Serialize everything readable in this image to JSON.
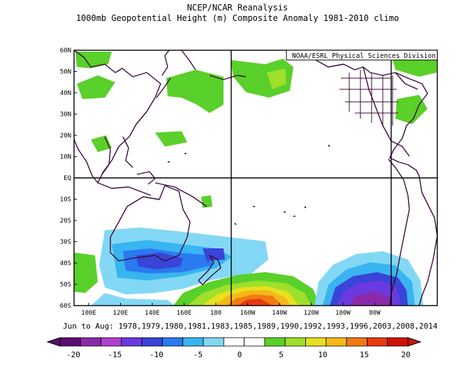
{
  "header": {
    "title": "NCEP/NCAR Reanalysis",
    "subtitle": "1000mb Geopotential Height (m) Composite Anomaly 1981-2010 climo"
  },
  "credit": "NOAA/ESRL Physical Sciences Division",
  "lat_labels": [
    "60N",
    "50N",
    "40N",
    "30N",
    "20N",
    "10N",
    "EQ",
    "10S",
    "20S",
    "30S",
    "40S",
    "50S",
    "60S"
  ],
  "lon_labels": [
    "100E",
    "120E",
    "140E",
    "160E",
    "180",
    "160W",
    "140W",
    "120W",
    "100W",
    "80W"
  ],
  "footer": "Jun to Aug: 1978,1979,1980,1981,1983,1985,1989,1990,1992,1993,1996,2003,2008,2014",
  "colorbar": {
    "labels": [
      "-20",
      "-15",
      "-10",
      "-5",
      "0",
      "5",
      "10",
      "15",
      "20"
    ],
    "colors": [
      "#5a0f6e",
      "#8a2aa8",
      "#b040d0",
      "#6a3ae0",
      "#3a44d8",
      "#2a7af0",
      "#38b4f0",
      "#82d8f4",
      "#ffffff",
      "#ffffff",
      "#5ad02a",
      "#9ee02a",
      "#e8e020",
      "#f4b818",
      "#f27a12",
      "#e63a10",
      "#cc1408"
    ]
  }
}
